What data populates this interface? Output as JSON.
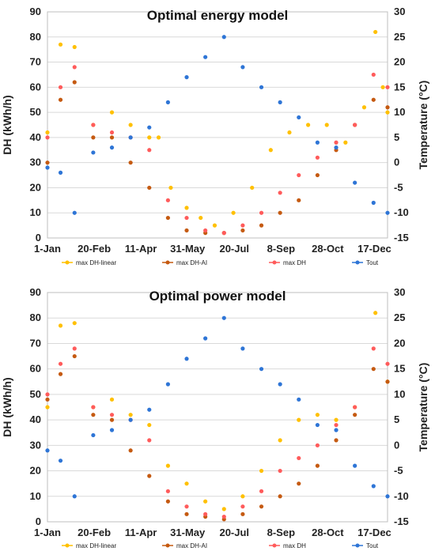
{
  "chart_data": [
    {
      "type": "scatter",
      "title": "Optimal energy model",
      "ylabel": "DH (kWh/h)",
      "y2label": "Temperature (°C)",
      "ylim": [
        0,
        90
      ],
      "y2lim": [
        -15,
        30
      ],
      "yticks": [
        "0",
        "10",
        "20",
        "30",
        "40",
        "50",
        "60",
        "70",
        "80",
        "90"
      ],
      "y2ticks": [
        "-15",
        "-10",
        "-5",
        "0",
        "5",
        "10",
        "15",
        "20",
        "25",
        "30"
      ],
      "xticks": [
        "1-Jan",
        "20-Feb",
        "11-Apr",
        "31-May",
        "20-Jul",
        "8-Sep",
        "28-Oct",
        "17-Dec"
      ],
      "legend_position": "bottom",
      "series": [
        {
          "name": "max DH-linear",
          "color": "#FFC000",
          "axis": "left",
          "values": [
            [
              1,
              42
            ],
            [
              15,
              77
            ],
            [
              30,
              76
            ],
            [
              50,
              45
            ],
            [
              70,
              50
            ],
            [
              90,
              45
            ],
            [
              110,
              40
            ],
            [
              120,
              40
            ],
            [
              133,
              20
            ],
            [
              150,
              12
            ],
            [
              165,
              8
            ],
            [
              180,
              5
            ],
            [
              200,
              10
            ],
            [
              220,
              20
            ],
            [
              240,
              35
            ],
            [
              260,
              42
            ],
            [
              280,
              45
            ],
            [
              300,
              45
            ],
            [
              320,
              38
            ],
            [
              340,
              52
            ],
            [
              352,
              82
            ],
            [
              360,
              60
            ],
            [
              365,
              50
            ]
          ]
        },
        {
          "name": "max DH-AI",
          "color": "#C55A11",
          "axis": "left",
          "values": [
            [
              1,
              30
            ],
            [
              15,
              55
            ],
            [
              30,
              62
            ],
            [
              50,
              40
            ],
            [
              70,
              40
            ],
            [
              90,
              30
            ],
            [
              110,
              20
            ],
            [
              130,
              8
            ],
            [
              150,
              3
            ],
            [
              170,
              2
            ],
            [
              190,
              2
            ],
            [
              210,
              3
            ],
            [
              230,
              5
            ],
            [
              250,
              10
            ],
            [
              270,
              15
            ],
            [
              290,
              25
            ],
            [
              310,
              35
            ],
            [
              330,
              45
            ],
            [
              350,
              55
            ],
            [
              365,
              52
            ]
          ]
        },
        {
          "name": "max DH",
          "color": "#FF5B5B",
          "axis": "left",
          "values": [
            [
              1,
              40
            ],
            [
              15,
              60
            ],
            [
              30,
              68
            ],
            [
              50,
              45
            ],
            [
              70,
              42
            ],
            [
              90,
              40
            ],
            [
              110,
              35
            ],
            [
              130,
              15
            ],
            [
              150,
              8
            ],
            [
              170,
              3
            ],
            [
              190,
              2
            ],
            [
              210,
              5
            ],
            [
              230,
              10
            ],
            [
              250,
              18
            ],
            [
              270,
              25
            ],
            [
              290,
              32
            ],
            [
              310,
              38
            ],
            [
              330,
              45
            ],
            [
              350,
              65
            ],
            [
              365,
              60
            ]
          ]
        },
        {
          "name": "Tout",
          "color": "#2E75D6",
          "axis": "right",
          "values": [
            [
              1,
              -1
            ],
            [
              15,
              -2
            ],
            [
              30,
              -10
            ],
            [
              50,
              2
            ],
            [
              70,
              3
            ],
            [
              90,
              5
            ],
            [
              110,
              7
            ],
            [
              130,
              12
            ],
            [
              150,
              17
            ],
            [
              170,
              21
            ],
            [
              190,
              25
            ],
            [
              210,
              19
            ],
            [
              230,
              15
            ],
            [
              250,
              12
            ],
            [
              270,
              9
            ],
            [
              290,
              4
            ],
            [
              310,
              3
            ],
            [
              330,
              -4
            ],
            [
              350,
              -8
            ],
            [
              365,
              -10
            ]
          ]
        }
      ]
    },
    {
      "type": "scatter",
      "title": "Optimal power model",
      "ylabel": "DH (kWh/h)",
      "y2label": "Temperature (°C)",
      "ylim": [
        0,
        90
      ],
      "y2lim": [
        -15,
        30
      ],
      "yticks": [
        "0",
        "10",
        "20",
        "30",
        "40",
        "50",
        "60",
        "70",
        "80",
        "90"
      ],
      "y2ticks": [
        "-15",
        "-10",
        "-5",
        "0",
        "5",
        "10",
        "15",
        "20",
        "25",
        "30"
      ],
      "xticks": [
        "1-Jan",
        "20-Feb",
        "11-Apr",
        "31-May",
        "20-Jul",
        "8-Sep",
        "28-Oct",
        "17-Dec"
      ],
      "legend_position": "bottom",
      "series": [
        {
          "name": "max DH-linear",
          "color": "#FFC000",
          "axis": "left",
          "values": [
            [
              1,
              45
            ],
            [
              15,
              77
            ],
            [
              30,
              78
            ],
            [
              50,
              45
            ],
            [
              70,
              48
            ],
            [
              90,
              42
            ],
            [
              110,
              38
            ],
            [
              130,
              22
            ],
            [
              150,
              15
            ],
            [
              170,
              8
            ],
            [
              190,
              5
            ],
            [
              210,
              10
            ],
            [
              230,
              20
            ],
            [
              250,
              32
            ],
            [
              270,
              40
            ],
            [
              290,
              42
            ],
            [
              310,
              40
            ],
            [
              330,
              45
            ],
            [
              352,
              82
            ],
            [
              365,
              55
            ]
          ]
        },
        {
          "name": "max DH-AI",
          "color": "#C55A11",
          "axis": "left",
          "values": [
            [
              1,
              48
            ],
            [
              15,
              58
            ],
            [
              30,
              65
            ],
            [
              50,
              42
            ],
            [
              70,
              40
            ],
            [
              90,
              28
            ],
            [
              110,
              18
            ],
            [
              130,
              8
            ],
            [
              150,
              3
            ],
            [
              170,
              2
            ],
            [
              190,
              1
            ],
            [
              210,
              3
            ],
            [
              230,
              6
            ],
            [
              250,
              10
            ],
            [
              270,
              15
            ],
            [
              290,
              22
            ],
            [
              310,
              32
            ],
            [
              330,
              42
            ],
            [
              350,
              60
            ],
            [
              365,
              55
            ]
          ]
        },
        {
          "name": "max DH",
          "color": "#FF5B5B",
          "axis": "left",
          "values": [
            [
              1,
              50
            ],
            [
              15,
              62
            ],
            [
              30,
              68
            ],
            [
              50,
              45
            ],
            [
              70,
              42
            ],
            [
              90,
              40
            ],
            [
              110,
              32
            ],
            [
              130,
              12
            ],
            [
              150,
              6
            ],
            [
              170,
              3
            ],
            [
              190,
              2
            ],
            [
              210,
              6
            ],
            [
              230,
              12
            ],
            [
              250,
              20
            ],
            [
              270,
              25
            ],
            [
              290,
              30
            ],
            [
              310,
              38
            ],
            [
              330,
              45
            ],
            [
              350,
              68
            ],
            [
              365,
              62
            ]
          ]
        },
        {
          "name": "Tout",
          "color": "#2E75D6",
          "axis": "right",
          "values": [
            [
              1,
              -1
            ],
            [
              15,
              -3
            ],
            [
              30,
              -10
            ],
            [
              50,
              2
            ],
            [
              70,
              3
            ],
            [
              90,
              5
            ],
            [
              110,
              7
            ],
            [
              130,
              12
            ],
            [
              150,
              17
            ],
            [
              170,
              21
            ],
            [
              190,
              25
            ],
            [
              210,
              19
            ],
            [
              230,
              15
            ],
            [
              250,
              12
            ],
            [
              270,
              9
            ],
            [
              290,
              4
            ],
            [
              310,
              3
            ],
            [
              330,
              -4
            ],
            [
              350,
              -8
            ],
            [
              365,
              -10
            ]
          ]
        }
      ]
    }
  ]
}
